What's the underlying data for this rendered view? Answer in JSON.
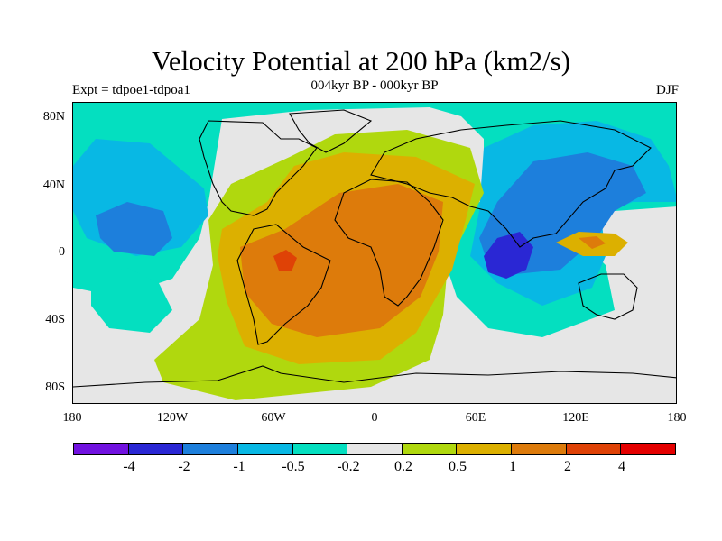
{
  "header": {
    "title": "Velocity Potential at 200 hPa (km2/s)",
    "left": "Expt = tdpoe1-tdpoa1",
    "center": "004kyr BP - 000kyr BP",
    "right": "DJF"
  },
  "axes": {
    "y_ticks": [
      "80N",
      "40N",
      "0",
      "40S",
      "80S"
    ],
    "x_ticks": [
      "180",
      "120W",
      "60W",
      "0",
      "60E",
      "120E",
      "180"
    ]
  },
  "colorbar": {
    "colors": [
      "#7112e0",
      "#2a27d4",
      "#1d7fdc",
      "#08b8e4",
      "#04dfc0",
      "#e6e6e6",
      "#b0d80e",
      "#dcb000",
      "#dd7b0b",
      "#df4206",
      "#e40000"
    ],
    "labels": [
      "-4",
      "-2",
      "-1",
      "-0.5",
      "-0.2",
      "0.2",
      "0.5",
      "1",
      "2",
      "4"
    ]
  },
  "palette": {
    "background": "#e6e6e6",
    "neg1": "#04dfc0",
    "neg2": "#08b8e4",
    "neg3": "#1d7fdc",
    "neg4": "#2a27d4",
    "pos1": "#b0d80e",
    "pos2": "#dcb000",
    "pos3": "#dd7b0b",
    "pos4": "#df4206",
    "coast": "#000000"
  }
}
